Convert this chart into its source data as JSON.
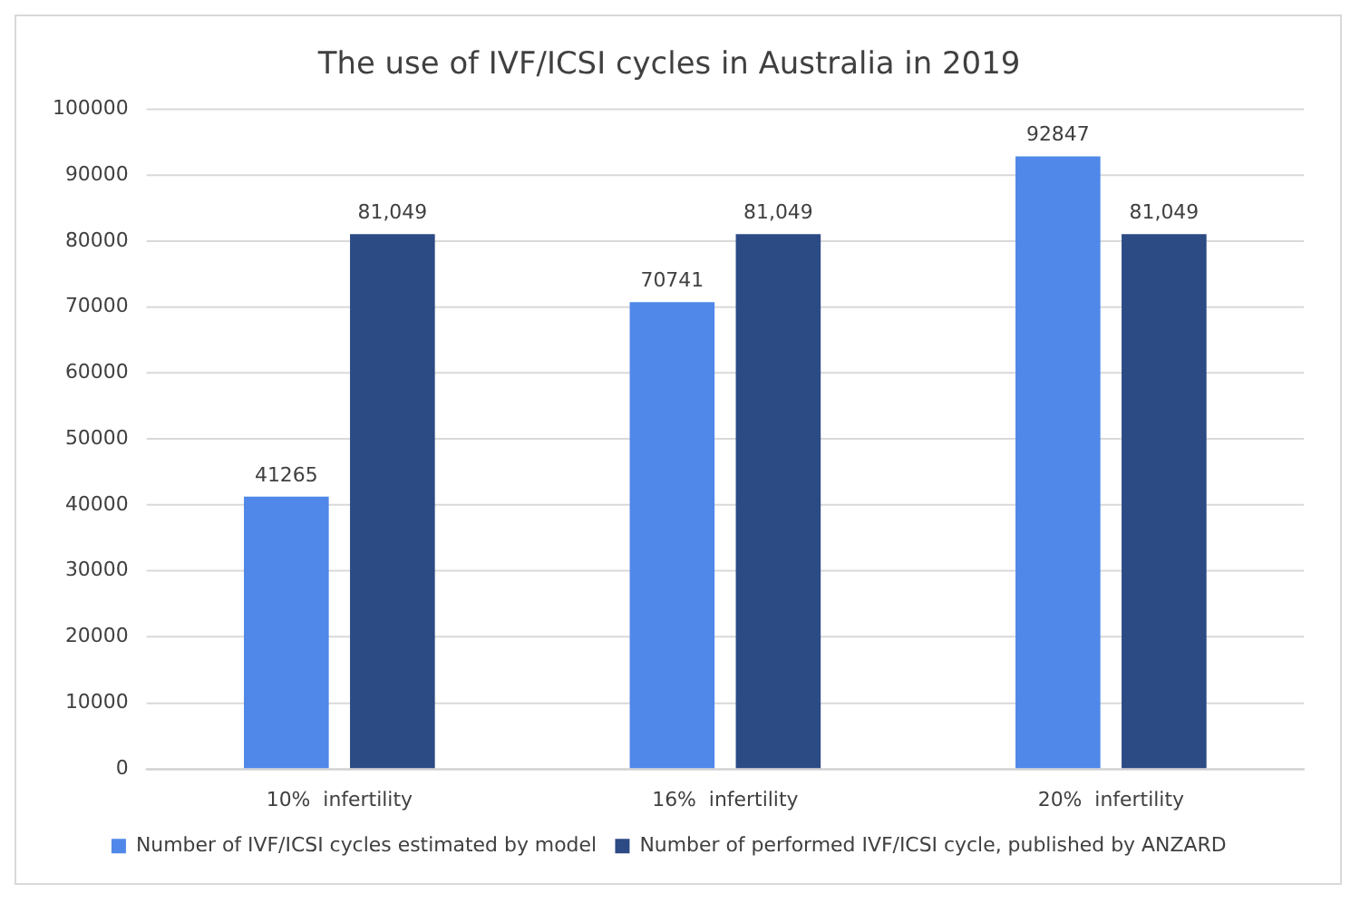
{
  "chart_data": {
    "type": "bar",
    "title": "The use of IVF/ICSI cycles in Australia in 2019",
    "categories": [
      "10%  infertility",
      "16%  infertility",
      "20%  infertility"
    ],
    "series": [
      {
        "name": "Number of IVF/ICSI cycles estimated by model",
        "color": "#4f88e8",
        "values": [
          41265,
          70741,
          92847
        ],
        "value_labels": [
          "41265",
          "70741",
          "92847"
        ]
      },
      {
        "name": "Number of performed IVF/ICSI cycle, published by ANZARD",
        "color": "#2c4a84",
        "values": [
          81049,
          81049,
          81049
        ],
        "value_labels": [
          "81,049",
          "81,049",
          "81,049"
        ]
      }
    ],
    "ylim": [
      0,
      100000
    ],
    "yticks": [
      0,
      10000,
      20000,
      30000,
      40000,
      50000,
      60000,
      70000,
      80000,
      90000,
      100000
    ],
    "grid": "y",
    "legend": "bottom"
  }
}
